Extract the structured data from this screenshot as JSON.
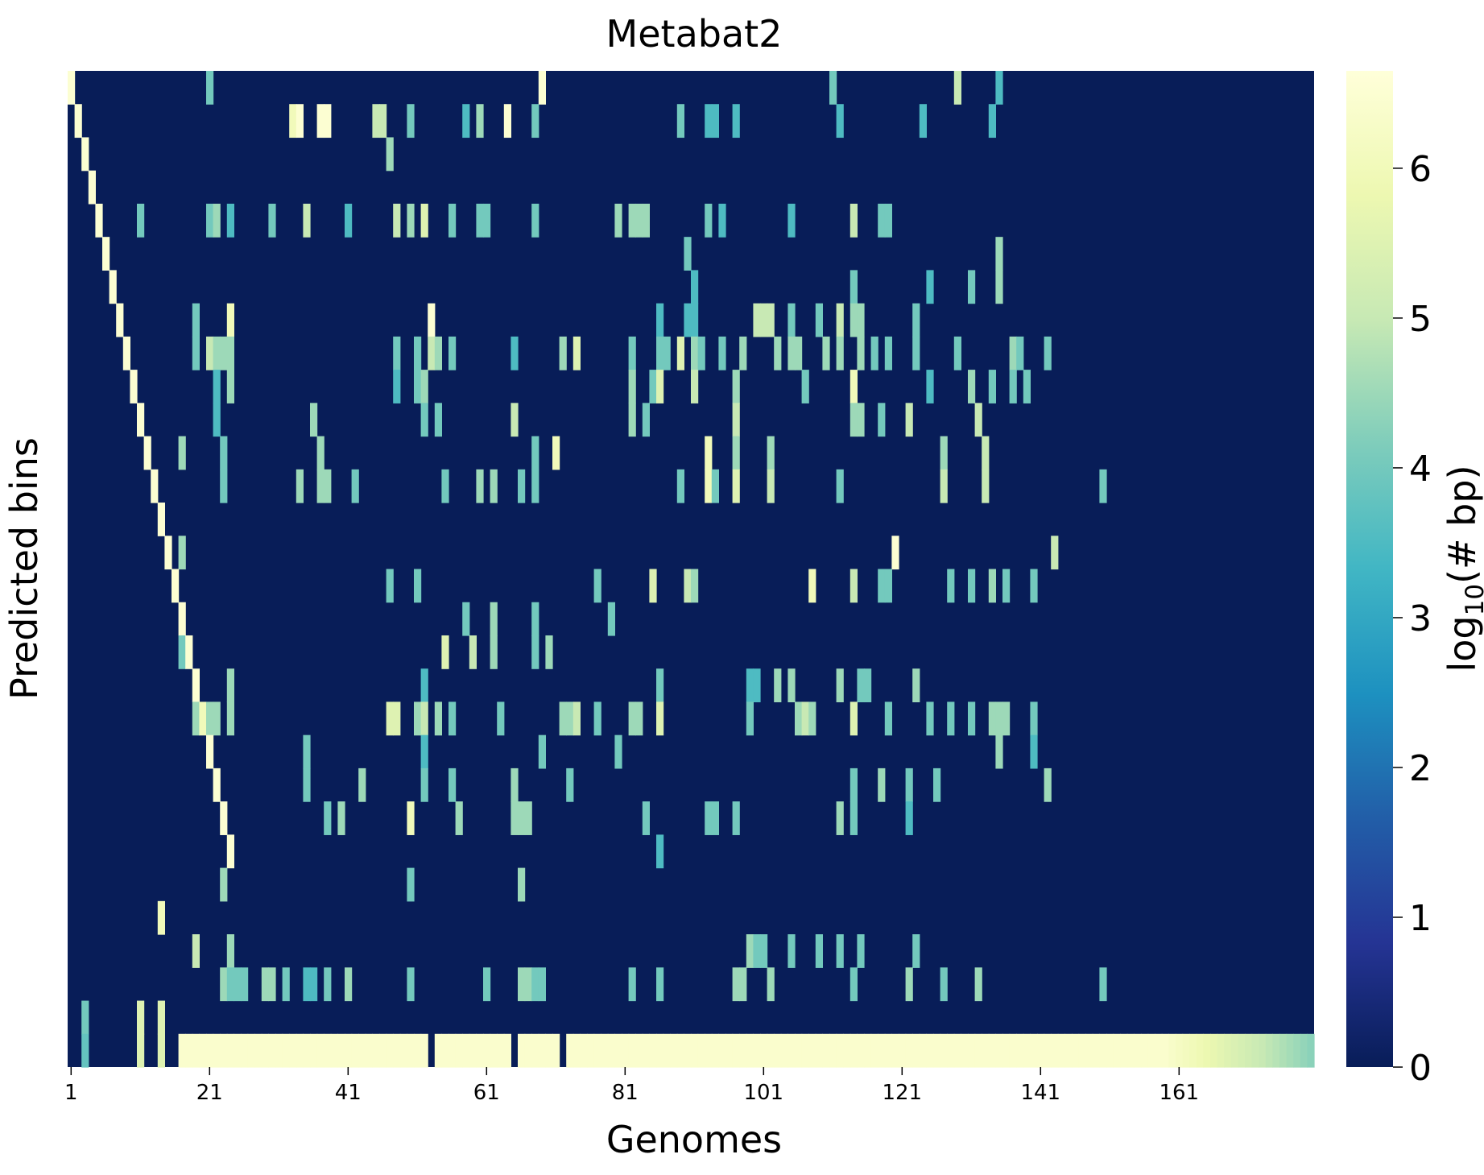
{
  "chart_data": {
    "type": "heatmap",
    "title": "Metabat2",
    "xlabel": "Genomes",
    "ylabel": "Predicted bins",
    "x_tick_labels": [
      "1",
      "21",
      "41",
      "61",
      "81",
      "101",
      "121",
      "141",
      "161"
    ],
    "x_tick_values": [
      1,
      21,
      41,
      61,
      81,
      101,
      121,
      141,
      161
    ],
    "n_genomes": 180,
    "n_bins": 30,
    "y_tick_labels": [],
    "colorbar": {
      "label": "log10(# bp)",
      "label_main": "log",
      "label_sub": "10",
      "label_rest": "(# bp)",
      "range": [
        0,
        6.65
      ],
      "ticks": [
        "0",
        "1",
        "2",
        "3",
        "4",
        "5",
        "6"
      ],
      "tick_values": [
        0,
        1,
        2,
        3,
        4,
        5,
        6
      ],
      "colormap": "YlGnBu",
      "colormap_stops": [
        "#081d58",
        "#253494",
        "#225ea8",
        "#1d91c0",
        "#41b6c4",
        "#7fcdbb",
        "#c7e9b4",
        "#edf8b1",
        "#ffffd9"
      ]
    },
    "background_value": 0,
    "cells": [
      [
        0,
        0,
        6.5
      ],
      [
        0,
        20,
        4.0
      ],
      [
        0,
        68,
        6.5
      ],
      [
        0,
        110,
        4.0
      ],
      [
        0,
        128,
        5.0
      ],
      [
        0,
        134,
        3.5
      ],
      [
        1,
        1,
        6.5
      ],
      [
        1,
        32,
        6.0
      ],
      [
        1,
        33,
        6.5
      ],
      [
        1,
        36,
        6.5
      ],
      [
        1,
        37,
        6.5
      ],
      [
        1,
        44,
        5.0
      ],
      [
        1,
        45,
        5.0
      ],
      [
        1,
        49,
        4.0
      ],
      [
        1,
        57,
        3.5
      ],
      [
        1,
        59,
        4.5
      ],
      [
        1,
        63,
        6.5
      ],
      [
        1,
        67,
        4.0
      ],
      [
        1,
        88,
        4.0
      ],
      [
        1,
        92,
        3.5
      ],
      [
        1,
        93,
        3.5
      ],
      [
        1,
        96,
        3.5
      ],
      [
        1,
        111,
        3.5
      ],
      [
        1,
        123,
        3.5
      ],
      [
        1,
        133,
        3.5
      ],
      [
        2,
        2,
        6.5
      ],
      [
        2,
        46,
        4.5
      ],
      [
        3,
        3,
        6.5
      ],
      [
        4,
        4,
        6.5
      ],
      [
        4,
        10,
        4.0
      ],
      [
        4,
        20,
        4.0
      ],
      [
        4,
        21,
        4.5
      ],
      [
        4,
        23,
        3.5
      ],
      [
        4,
        29,
        4.0
      ],
      [
        4,
        34,
        5.0
      ],
      [
        4,
        40,
        3.5
      ],
      [
        4,
        47,
        5.0
      ],
      [
        4,
        49,
        4.5
      ],
      [
        4,
        51,
        5.5
      ],
      [
        4,
        55,
        4.0
      ],
      [
        4,
        59,
        4.0
      ],
      [
        4,
        60,
        4.0
      ],
      [
        4,
        67,
        4.0
      ],
      [
        4,
        79,
        4.5
      ],
      [
        4,
        81,
        4.5
      ],
      [
        4,
        82,
        4.5
      ],
      [
        4,
        83,
        4.5
      ],
      [
        4,
        92,
        4.0
      ],
      [
        4,
        94,
        3.5
      ],
      [
        4,
        104,
        3.5
      ],
      [
        4,
        113,
        5.0
      ],
      [
        4,
        117,
        4.0
      ],
      [
        4,
        118,
        4.0
      ],
      [
        5,
        5,
        6.5
      ],
      [
        5,
        89,
        4.0
      ],
      [
        5,
        134,
        4.5
      ],
      [
        6,
        6,
        6.5
      ],
      [
        6,
        90,
        3.5
      ],
      [
        6,
        113,
        4.0
      ],
      [
        6,
        124,
        3.5
      ],
      [
        6,
        130,
        4.0
      ],
      [
        6,
        134,
        4.5
      ],
      [
        7,
        7,
        6.5
      ],
      [
        7,
        18,
        4.0
      ],
      [
        7,
        23,
        6.0
      ],
      [
        7,
        52,
        6.5
      ],
      [
        7,
        85,
        3.5
      ],
      [
        7,
        89,
        3.5
      ],
      [
        7,
        90,
        3.5
      ],
      [
        7,
        99,
        5.0
      ],
      [
        7,
        100,
        5.0
      ],
      [
        7,
        101,
        5.0
      ],
      [
        7,
        104,
        4.0
      ],
      [
        7,
        108,
        4.0
      ],
      [
        7,
        111,
        5.0
      ],
      [
        7,
        113,
        4.5
      ],
      [
        7,
        114,
        4.5
      ],
      [
        7,
        122,
        4.0
      ],
      [
        8,
        8,
        6.5
      ],
      [
        8,
        18,
        4.0
      ],
      [
        8,
        20,
        5.0
      ],
      [
        8,
        21,
        4.5
      ],
      [
        8,
        22,
        4.5
      ],
      [
        8,
        23,
        4.5
      ],
      [
        8,
        47,
        4.0
      ],
      [
        8,
        50,
        4.0
      ],
      [
        8,
        52,
        5.0
      ],
      [
        8,
        53,
        4.5
      ],
      [
        8,
        55,
        4.0
      ],
      [
        8,
        64,
        3.5
      ],
      [
        8,
        71,
        4.5
      ],
      [
        8,
        73,
        5.5
      ],
      [
        8,
        81,
        4.0
      ],
      [
        8,
        85,
        4.0
      ],
      [
        8,
        86,
        4.0
      ],
      [
        8,
        88,
        5.5
      ],
      [
        8,
        90,
        4.5
      ],
      [
        8,
        91,
        4.0
      ],
      [
        8,
        94,
        4.0
      ],
      [
        8,
        97,
        4.5
      ],
      [
        8,
        102,
        4.5
      ],
      [
        8,
        104,
        4.5
      ],
      [
        8,
        105,
        4.5
      ],
      [
        8,
        109,
        4.5
      ],
      [
        8,
        111,
        4.5
      ],
      [
        8,
        114,
        4.5
      ],
      [
        8,
        116,
        4.0
      ],
      [
        8,
        118,
        4.0
      ],
      [
        8,
        122,
        4.0
      ],
      [
        8,
        128,
        4.0
      ],
      [
        8,
        136,
        4.5
      ],
      [
        8,
        137,
        4.0
      ],
      [
        8,
        141,
        4.0
      ],
      [
        9,
        9,
        6.5
      ],
      [
        9,
        21,
        3.5
      ],
      [
        9,
        23,
        4.5
      ],
      [
        9,
        47,
        3.5
      ],
      [
        9,
        50,
        4.0
      ],
      [
        9,
        51,
        4.5
      ],
      [
        9,
        81,
        4.5
      ],
      [
        9,
        84,
        4.0
      ],
      [
        9,
        85,
        5.5
      ],
      [
        9,
        90,
        5.0
      ],
      [
        9,
        96,
        4.5
      ],
      [
        9,
        106,
        4.0
      ],
      [
        9,
        113,
        6.0
      ],
      [
        9,
        124,
        3.5
      ],
      [
        9,
        130,
        4.5
      ],
      [
        9,
        133,
        4.0
      ],
      [
        9,
        136,
        4.0
      ],
      [
        9,
        138,
        4.0
      ],
      [
        10,
        10,
        6.5
      ],
      [
        10,
        21,
        3.5
      ],
      [
        10,
        35,
        4.5
      ],
      [
        10,
        51,
        4.0
      ],
      [
        10,
        53,
        4.0
      ],
      [
        10,
        64,
        5.0
      ],
      [
        10,
        81,
        4.5
      ],
      [
        10,
        83,
        4.0
      ],
      [
        10,
        96,
        5.0
      ],
      [
        10,
        113,
        4.5
      ],
      [
        10,
        114,
        4.5
      ],
      [
        10,
        117,
        4.0
      ],
      [
        10,
        121,
        5.0
      ],
      [
        10,
        131,
        5.0
      ],
      [
        11,
        11,
        6.5
      ],
      [
        11,
        16,
        4.5
      ],
      [
        11,
        22,
        4.0
      ],
      [
        11,
        36,
        4.5
      ],
      [
        11,
        67,
        4.0
      ],
      [
        11,
        70,
        6.0
      ],
      [
        11,
        92,
        6.0
      ],
      [
        11,
        96,
        4.5
      ],
      [
        11,
        101,
        4.5
      ],
      [
        11,
        126,
        4.5
      ],
      [
        11,
        132,
        5.0
      ],
      [
        12,
        12,
        6.5
      ],
      [
        12,
        22,
        4.0
      ],
      [
        12,
        33,
        4.5
      ],
      [
        12,
        36,
        4.5
      ],
      [
        12,
        37,
        4.5
      ],
      [
        12,
        41,
        4.0
      ],
      [
        12,
        54,
        4.0
      ],
      [
        12,
        59,
        4.5
      ],
      [
        12,
        61,
        4.5
      ],
      [
        12,
        65,
        4.0
      ],
      [
        12,
        67,
        4.0
      ],
      [
        12,
        88,
        4.0
      ],
      [
        12,
        92,
        6.0
      ],
      [
        12,
        93,
        4.0
      ],
      [
        12,
        96,
        5.5
      ],
      [
        12,
        101,
        5.0
      ],
      [
        12,
        111,
        4.0
      ],
      [
        12,
        126,
        5.0
      ],
      [
        12,
        132,
        5.0
      ],
      [
        12,
        149,
        4.0
      ],
      [
        13,
        13,
        6.5
      ],
      [
        14,
        14,
        6.5
      ],
      [
        14,
        16,
        4.5
      ],
      [
        14,
        119,
        6.5
      ],
      [
        14,
        142,
        5.0
      ],
      [
        15,
        15,
        6.5
      ],
      [
        15,
        46,
        4.0
      ],
      [
        15,
        50,
        4.0
      ],
      [
        15,
        76,
        4.0
      ],
      [
        15,
        84,
        5.5
      ],
      [
        15,
        89,
        5.0
      ],
      [
        15,
        90,
        4.5
      ],
      [
        15,
        107,
        6.0
      ],
      [
        15,
        113,
        5.0
      ],
      [
        15,
        117,
        4.0
      ],
      [
        15,
        118,
        4.0
      ],
      [
        15,
        127,
        4.0
      ],
      [
        15,
        130,
        4.0
      ],
      [
        15,
        133,
        4.5
      ],
      [
        15,
        135,
        4.0
      ],
      [
        15,
        139,
        4.0
      ],
      [
        16,
        16,
        6.5
      ],
      [
        16,
        57,
        4.0
      ],
      [
        16,
        61,
        4.5
      ],
      [
        16,
        67,
        4.0
      ],
      [
        16,
        78,
        4.0
      ],
      [
        17,
        16,
        4.0
      ],
      [
        17,
        17,
        6.5
      ],
      [
        17,
        54,
        5.5
      ],
      [
        17,
        58,
        5.0
      ],
      [
        17,
        61,
        4.5
      ],
      [
        17,
        67,
        4.0
      ],
      [
        17,
        69,
        4.5
      ],
      [
        18,
        18,
        6.5
      ],
      [
        18,
        23,
        4.5
      ],
      [
        18,
        51,
        3.5
      ],
      [
        18,
        85,
        4.0
      ],
      [
        18,
        98,
        3.5
      ],
      [
        18,
        99,
        3.5
      ],
      [
        18,
        102,
        4.5
      ],
      [
        18,
        104,
        4.5
      ],
      [
        18,
        111,
        4.5
      ],
      [
        18,
        114,
        4.0
      ],
      [
        18,
        115,
        4.0
      ],
      [
        18,
        122,
        4.5
      ],
      [
        19,
        18,
        4.5
      ],
      [
        19,
        19,
        6.0
      ],
      [
        19,
        20,
        4.5
      ],
      [
        19,
        21,
        4.5
      ],
      [
        19,
        23,
        4.5
      ],
      [
        19,
        46,
        5.5
      ],
      [
        19,
        47,
        5.5
      ],
      [
        19,
        50,
        4.5
      ],
      [
        19,
        51,
        5.0
      ],
      [
        19,
        53,
        4.5
      ],
      [
        19,
        55,
        4.0
      ],
      [
        19,
        62,
        4.0
      ],
      [
        19,
        71,
        4.5
      ],
      [
        19,
        72,
        4.5
      ],
      [
        19,
        73,
        5.0
      ],
      [
        19,
        76,
        4.0
      ],
      [
        19,
        81,
        4.5
      ],
      [
        19,
        82,
        4.5
      ],
      [
        19,
        85,
        5.5
      ],
      [
        19,
        98,
        4.0
      ],
      [
        19,
        105,
        4.5
      ],
      [
        19,
        106,
        5.0
      ],
      [
        19,
        107,
        4.5
      ],
      [
        19,
        113,
        5.5
      ],
      [
        19,
        118,
        4.0
      ],
      [
        19,
        124,
        4.0
      ],
      [
        19,
        127,
        4.0
      ],
      [
        19,
        130,
        4.0
      ],
      [
        19,
        133,
        4.5
      ],
      [
        19,
        134,
        4.5
      ],
      [
        19,
        135,
        4.5
      ],
      [
        19,
        139,
        4.0
      ],
      [
        20,
        20,
        6.5
      ],
      [
        20,
        34,
        4.0
      ],
      [
        20,
        51,
        3.5
      ],
      [
        20,
        68,
        4.0
      ],
      [
        20,
        79,
        4.0
      ],
      [
        20,
        134,
        4.5
      ],
      [
        20,
        139,
        3.5
      ],
      [
        21,
        21,
        6.5
      ],
      [
        21,
        34,
        4.0
      ],
      [
        21,
        42,
        4.5
      ],
      [
        21,
        51,
        4.0
      ],
      [
        21,
        55,
        4.0
      ],
      [
        21,
        64,
        4.5
      ],
      [
        21,
        72,
        4.0
      ],
      [
        21,
        113,
        4.0
      ],
      [
        21,
        117,
        4.5
      ],
      [
        21,
        121,
        4.0
      ],
      [
        21,
        125,
        4.0
      ],
      [
        21,
        141,
        4.5
      ],
      [
        22,
        22,
        6.5
      ],
      [
        22,
        37,
        4.0
      ],
      [
        22,
        39,
        4.5
      ],
      [
        22,
        49,
        6.0
      ],
      [
        22,
        56,
        4.5
      ],
      [
        22,
        64,
        4.5
      ],
      [
        22,
        65,
        4.5
      ],
      [
        22,
        66,
        4.5
      ],
      [
        22,
        83,
        4.0
      ],
      [
        22,
        92,
        4.0
      ],
      [
        22,
        93,
        4.0
      ],
      [
        22,
        96,
        4.0
      ],
      [
        22,
        111,
        4.5
      ],
      [
        22,
        113,
        4.0
      ],
      [
        22,
        121,
        3.5
      ],
      [
        23,
        23,
        6.5
      ],
      [
        23,
        85,
        3.5
      ],
      [
        24,
        22,
        4.5
      ],
      [
        24,
        49,
        4.0
      ],
      [
        24,
        65,
        4.5
      ],
      [
        25,
        13,
        6.0
      ],
      [
        26,
        18,
        5.0
      ],
      [
        26,
        23,
        4.5
      ],
      [
        26,
        98,
        4.5
      ],
      [
        26,
        99,
        4.0
      ],
      [
        26,
        100,
        4.0
      ],
      [
        26,
        104,
        4.0
      ],
      [
        26,
        108,
        4.0
      ],
      [
        26,
        111,
        4.0
      ],
      [
        26,
        114,
        4.0
      ],
      [
        26,
        122,
        4.0
      ],
      [
        27,
        22,
        4.5
      ],
      [
        27,
        23,
        4.0
      ],
      [
        27,
        24,
        4.0
      ],
      [
        27,
        25,
        4.0
      ],
      [
        27,
        28,
        4.5
      ],
      [
        27,
        29,
        4.5
      ],
      [
        27,
        31,
        4.0
      ],
      [
        27,
        34,
        3.5
      ],
      [
        27,
        35,
        3.5
      ],
      [
        27,
        37,
        4.0
      ],
      [
        27,
        40,
        4.5
      ],
      [
        27,
        49,
        4.0
      ],
      [
        27,
        60,
        4.0
      ],
      [
        27,
        65,
        4.5
      ],
      [
        27,
        66,
        4.5
      ],
      [
        27,
        67,
        4.0
      ],
      [
        27,
        68,
        4.0
      ],
      [
        27,
        81,
        4.0
      ],
      [
        27,
        85,
        4.0
      ],
      [
        27,
        96,
        4.5
      ],
      [
        27,
        97,
        4.5
      ],
      [
        27,
        101,
        4.5
      ],
      [
        27,
        113,
        4.0
      ],
      [
        27,
        121,
        4.5
      ],
      [
        27,
        126,
        4.0
      ],
      [
        27,
        131,
        4.5
      ],
      [
        27,
        149,
        4.0
      ],
      [
        28,
        2,
        4.0
      ],
      [
        28,
        10,
        5.5
      ],
      [
        28,
        13,
        5.5
      ]
    ],
    "bottom_row": {
      "bin_index": 29,
      "base_value": 6.4,
      "full_from": 16,
      "full_to": 179,
      "gaps": [
        52,
        64,
        71
      ],
      "low_values": [
        [
          2,
          3.8
        ],
        [
          10,
          5.5
        ],
        [
          13,
          5.5
        ]
      ],
      "tail_fade_from": 158,
      "tail_end_value": 4.3
    }
  }
}
